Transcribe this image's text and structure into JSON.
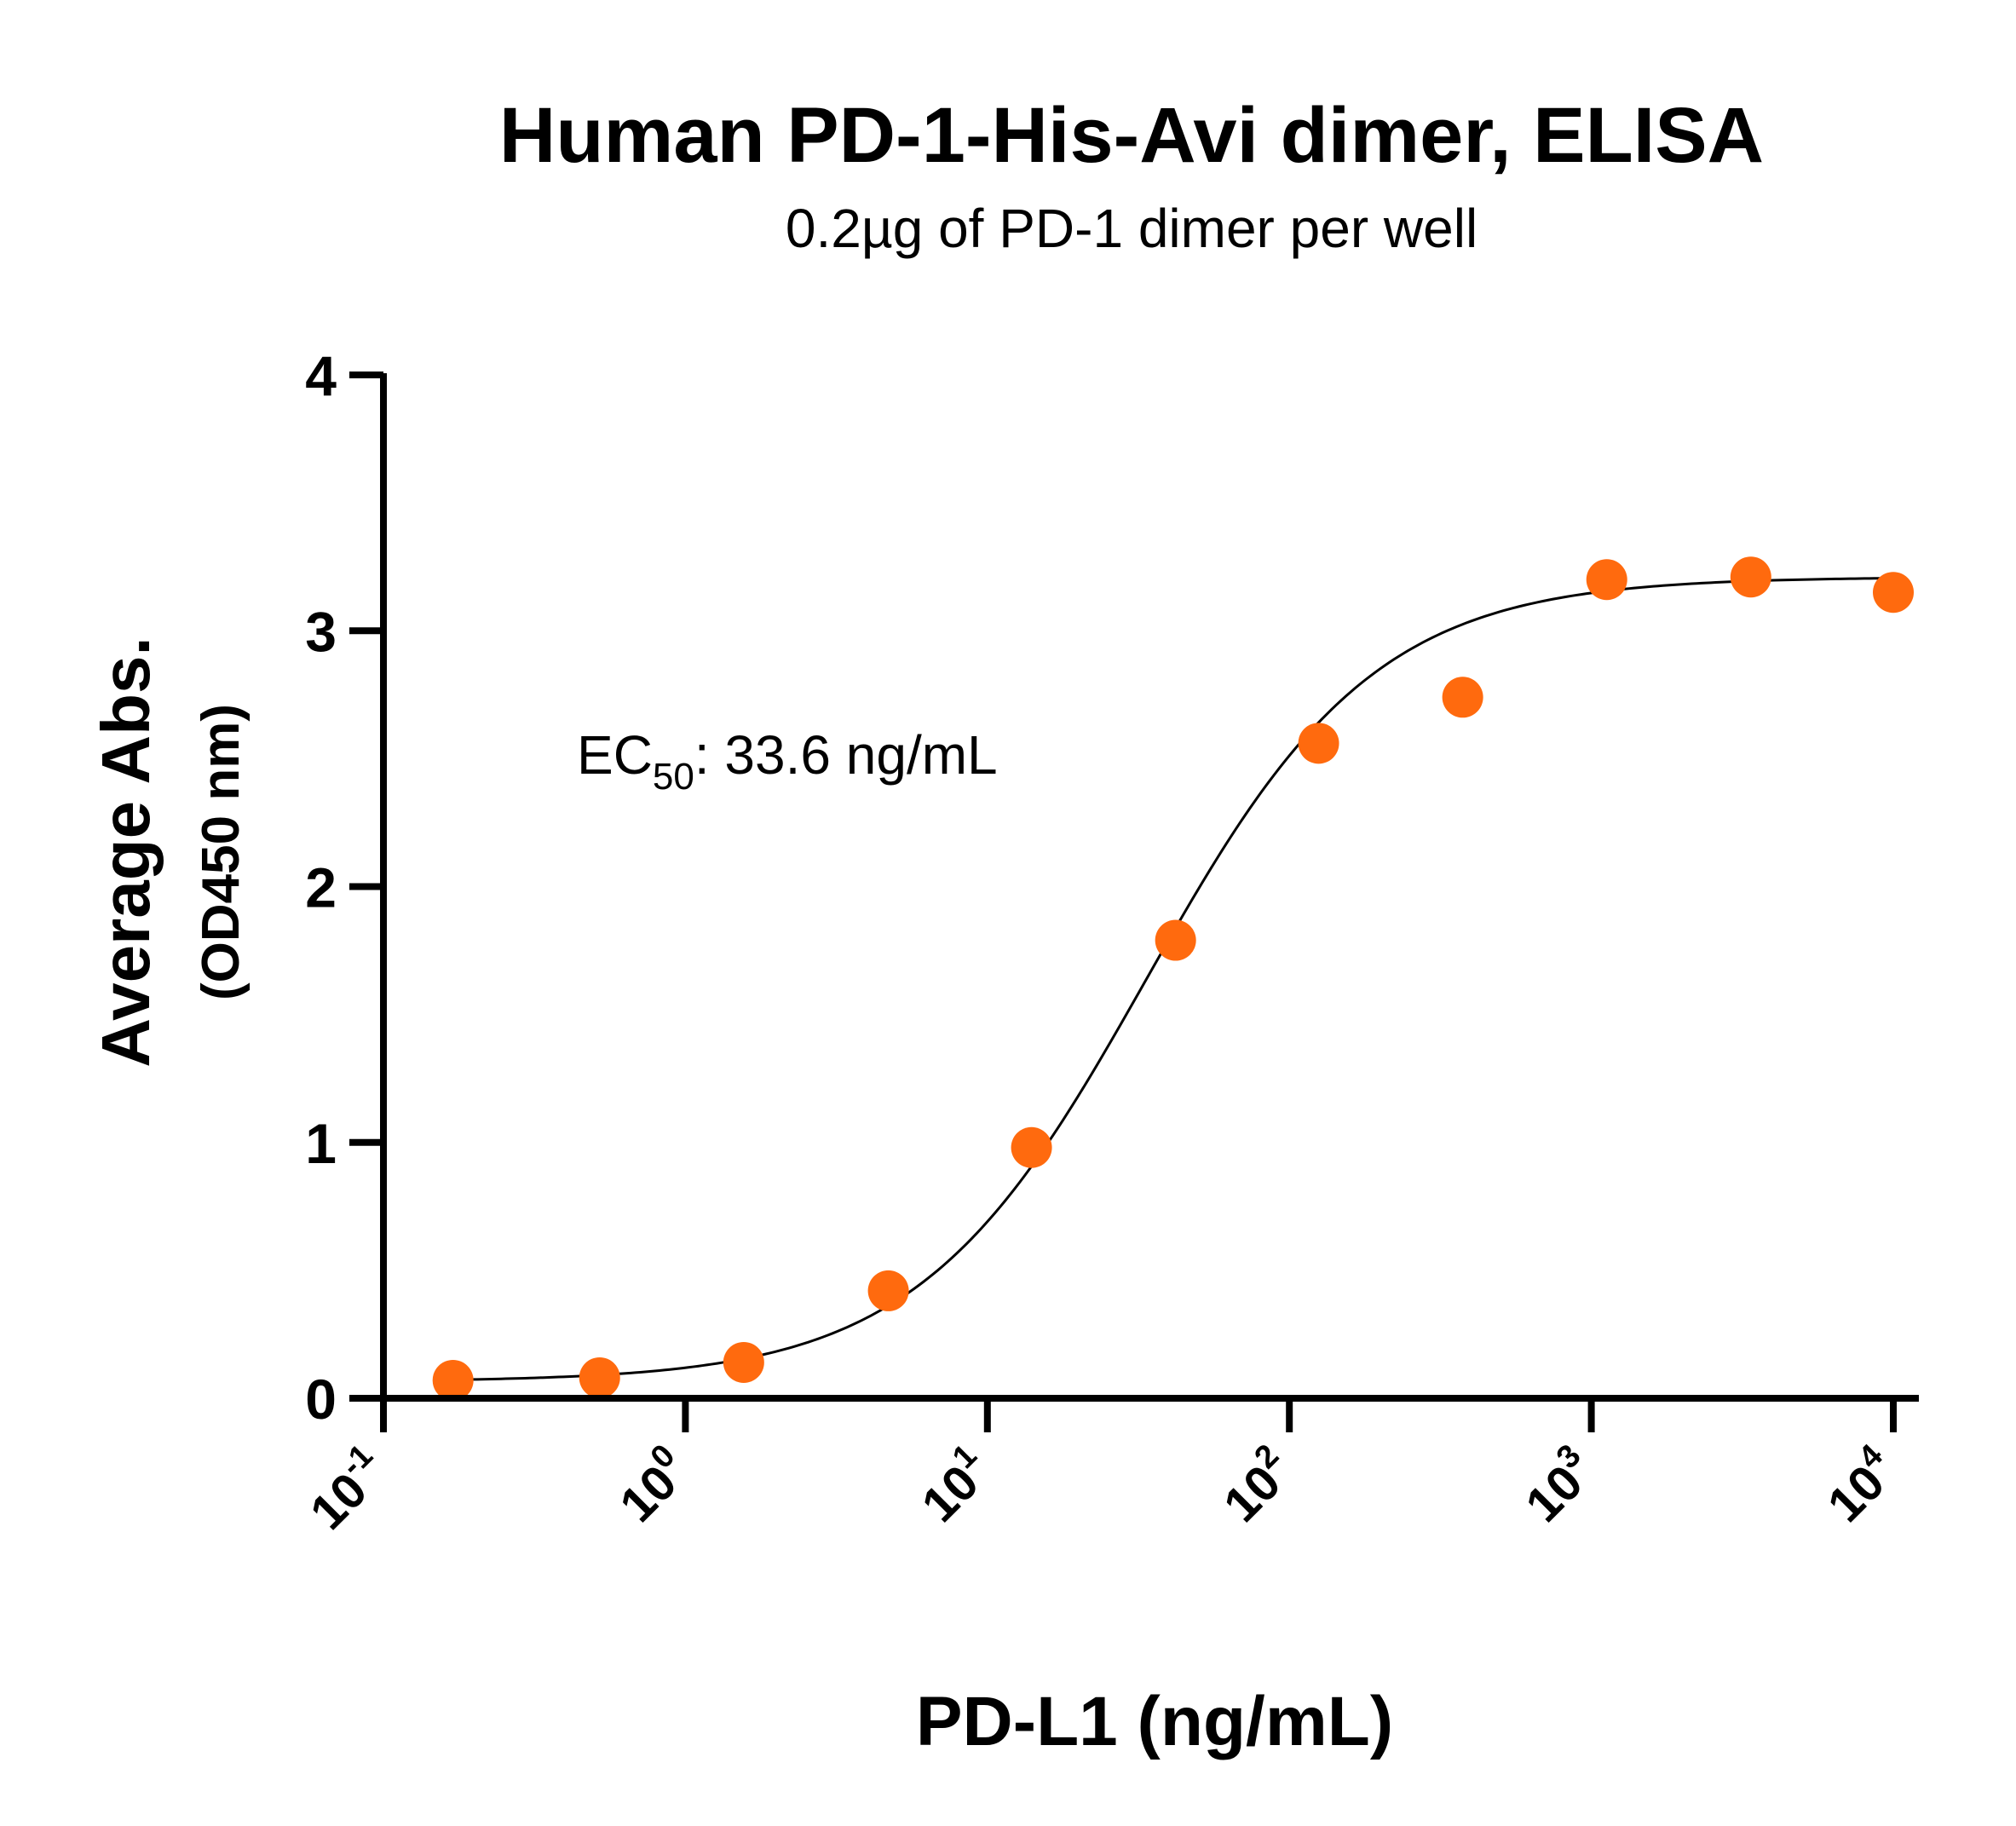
{
  "chart_data": {
    "type": "scatter",
    "title": "Human PD-1-His-Avi dimer, ELISA",
    "subtitle": "0.2µg of PD-1 dimer per well",
    "xlabel": "PD-L1 (ng/mL)",
    "ylabel": "Average Abs.",
    "ylabel_sub": "(OD450 nm)",
    "x_scale": "log10",
    "xlim": [
      0.1,
      10000
    ],
    "ylim": [
      0,
      4
    ],
    "yticks": [
      "0",
      "1",
      "2",
      "3",
      "4"
    ],
    "yticks_values": [
      0,
      1,
      2,
      3,
      4
    ],
    "xticks": [
      {
        "base": "10",
        "exp": "-1"
      },
      {
        "base": "10",
        "exp": "0"
      },
      {
        "base": "10",
        "exp": "1"
      },
      {
        "base": "10",
        "exp": "2"
      },
      {
        "base": "10",
        "exp": "3"
      },
      {
        "base": "10",
        "exp": "4"
      }
    ],
    "xticks_values": [
      0.1,
      1,
      10,
      100,
      1000,
      10000
    ],
    "grid": false,
    "legend": "none",
    "annotation": {
      "prefix": "EC",
      "subscript": "50",
      "suffix": ": 33.6 ng/mL"
    },
    "point_color": "#ff6a0e",
    "curve_color": "#000000",
    "series": [
      {
        "x": [
          0.17,
          0.52,
          1.56,
          4.7,
          14,
          42,
          125,
          375,
          1125,
          3375,
          10000
        ],
        "y": [
          0.07,
          0.08,
          0.14,
          0.42,
          0.98,
          1.79,
          2.56,
          2.74,
          3.2,
          3.21,
          3.15
        ]
      }
    ],
    "fit": {
      "model": "4PL",
      "bottom": 0.065,
      "top": 3.21,
      "ec50": 33.6,
      "hill": 1.15
    }
  }
}
